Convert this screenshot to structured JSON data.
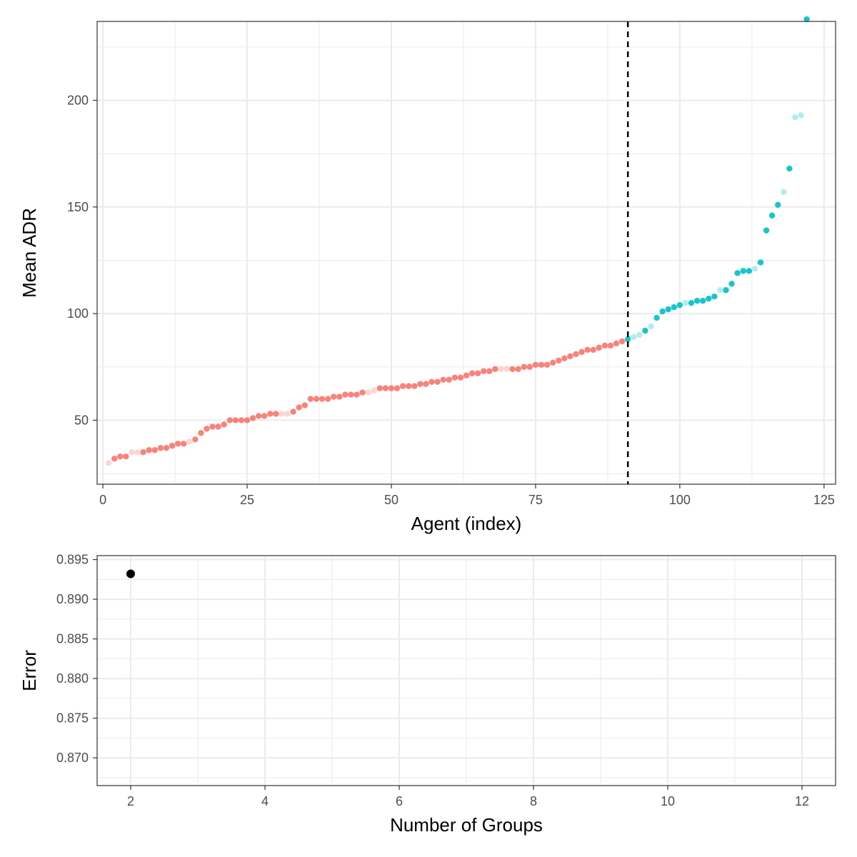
{
  "chart_data": [
    {
      "type": "scatter",
      "xlabel": "Agent (index)",
      "ylabel": "Mean ADR",
      "xlim": [
        -1,
        127
      ],
      "ylim": [
        20,
        237
      ],
      "x_ticks": [
        "0",
        "25",
        "50",
        "75",
        "100",
        "125"
      ],
      "y_ticks": [
        "50",
        "100",
        "150",
        "200"
      ],
      "grid": true,
      "legend": "none",
      "reference_line": {
        "orientation": "vertical",
        "x": 91,
        "style": "dashed",
        "color": "#000000"
      },
      "colors": {
        "group_low": "#F8766D",
        "group_high": "#00BFC4"
      },
      "series": [
        {
          "group": "low",
          "x": [
            1,
            2,
            3,
            4,
            5,
            6,
            7,
            8,
            9,
            10,
            11,
            12,
            13,
            14,
            15,
            16,
            17,
            18,
            19,
            20,
            21,
            22,
            23,
            24,
            25,
            26,
            27,
            28,
            29,
            30,
            31,
            32,
            33,
            34,
            35,
            36,
            37,
            38,
            39,
            40,
            41,
            42,
            43,
            44,
            45,
            46,
            47,
            48,
            49,
            50,
            51,
            52,
            53,
            54,
            55,
            56,
            57,
            58,
            59,
            60,
            61,
            62,
            63,
            64,
            65,
            66,
            67,
            68,
            69,
            70,
            71,
            72,
            73,
            74,
            75,
            76,
            77,
            78,
            79,
            80,
            81,
            82,
            83,
            84,
            85,
            86,
            87,
            88,
            89,
            90
          ],
          "y": [
            30,
            32,
            33,
            33,
            35,
            35,
            35,
            36,
            36,
            37,
            37,
            38,
            39,
            39,
            40,
            41,
            44,
            46,
            47,
            47,
            48,
            50,
            50,
            50,
            50,
            51,
            52,
            52,
            53,
            53,
            53,
            53,
            54,
            56,
            57,
            60,
            60,
            60,
            60,
            61,
            61,
            62,
            62,
            62,
            63,
            63,
            64,
            65,
            65,
            65,
            65,
            66,
            66,
            66,
            67,
            67,
            68,
            68,
            69,
            69,
            70,
            70,
            71,
            72,
            72,
            73,
            73,
            74,
            74,
            74,
            74,
            74,
            75,
            75,
            76,
            76,
            76,
            77,
            78,
            79,
            80,
            81,
            82,
            83,
            83,
            84,
            85,
            85,
            86,
            87
          ],
          "opacity": [
            0.3,
            0.9,
            0.9,
            0.9,
            0.3,
            0.3,
            0.9,
            0.9,
            0.9,
            0.9,
            0.9,
            0.9,
            0.9,
            0.9,
            0.3,
            0.9,
            0.9,
            0.9,
            0.9,
            0.9,
            0.9,
            0.9,
            0.9,
            0.9,
            0.9,
            0.9,
            0.9,
            0.9,
            0.9,
            0.9,
            0.3,
            0.3,
            0.9,
            0.9,
            0.9,
            0.9,
            0.9,
            0.9,
            0.9,
            0.9,
            0.9,
            0.9,
            0.9,
            0.9,
            0.9,
            0.3,
            0.3,
            0.9,
            0.9,
            0.9,
            0.9,
            0.9,
            0.9,
            0.9,
            0.9,
            0.9,
            0.9,
            0.9,
            0.9,
            0.9,
            0.9,
            0.9,
            0.9,
            0.9,
            0.9,
            0.9,
            0.9,
            0.9,
            0.3,
            0.3,
            0.9,
            0.9,
            0.9,
            0.9,
            0.9,
            0.9,
            0.9,
            0.9,
            0.9,
            0.9,
            0.9,
            0.9,
            0.9,
            0.9,
            0.9,
            0.9,
            0.9,
            0.9,
            0.9,
            0.9
          ]
        },
        {
          "group": "high",
          "x": [
            91,
            92,
            93,
            94,
            95,
            96,
            97,
            98,
            99,
            100,
            101,
            102,
            103,
            104,
            105,
            106,
            107,
            108,
            109,
            110,
            111,
            112,
            113,
            114,
            115,
            116,
            117,
            118,
            119,
            120,
            121,
            122
          ],
          "y": [
            88,
            89,
            90,
            92,
            94,
            98,
            101,
            102,
            103,
            104,
            105,
            105,
            106,
            106,
            107,
            108,
            111,
            111,
            114,
            119,
            120,
            120,
            121,
            124,
            139,
            146,
            151,
            157,
            168,
            192,
            193,
            238
          ],
          "opacity": [
            0.9,
            0.3,
            0.3,
            0.9,
            0.3,
            0.9,
            0.9,
            0.9,
            0.9,
            0.9,
            0.3,
            0.9,
            0.9,
            0.9,
            0.9,
            0.9,
            0.3,
            0.9,
            0.9,
            0.9,
            0.9,
            0.9,
            0.3,
            0.9,
            0.9,
            0.9,
            0.9,
            0.3,
            0.9,
            0.3,
            0.3,
            0.9
          ]
        }
      ]
    },
    {
      "type": "scatter",
      "xlabel": "Number of Groups",
      "ylabel": "Error",
      "xlim": [
        1.5,
        12.5
      ],
      "ylim": [
        0.8665,
        0.8955
      ],
      "x_ticks": [
        "2",
        "4",
        "6",
        "8",
        "10",
        "12"
      ],
      "y_ticks": [
        "0.870",
        "0.875",
        "0.880",
        "0.885",
        "0.890",
        "0.895"
      ],
      "grid": true,
      "legend": "none",
      "series": [
        {
          "x": [
            2
          ],
          "y": [
            0.8932
          ],
          "color": "#000000"
        }
      ]
    }
  ]
}
